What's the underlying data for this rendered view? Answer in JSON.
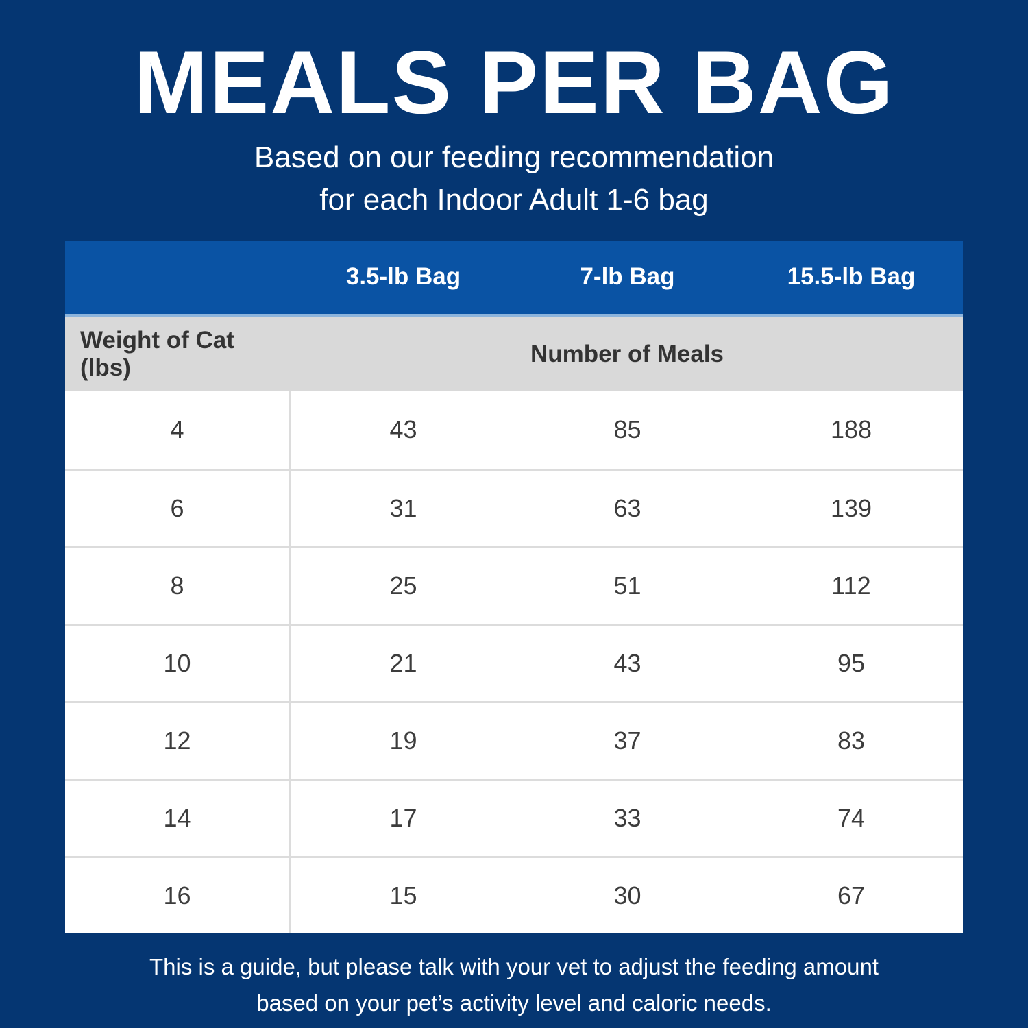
{
  "title": "MEALS PER BAG",
  "subtitle": {
    "line1": "Based on our feeding recommendation",
    "line2": "for each Indoor Adult 1-6 bag"
  },
  "chart_data": {
    "type": "table",
    "title": "MEALS PER BAG",
    "subtitle": "Based on our feeding recommendation for each Indoor Adult 1-6 bag",
    "columns": [
      "Weight of Cat (lbs)",
      "3.5-lb Bag",
      "7-lb Bag",
      "15.5-lb Bag"
    ],
    "group_header": "Number of Meals",
    "rows": [
      [
        4,
        43,
        85,
        188
      ],
      [
        6,
        31,
        63,
        139
      ],
      [
        8,
        25,
        51,
        112
      ],
      [
        10,
        21,
        43,
        95
      ],
      [
        12,
        19,
        37,
        83
      ],
      [
        14,
        17,
        33,
        74
      ],
      [
        16,
        15,
        30,
        67
      ]
    ]
  },
  "table": {
    "bag_headers": [
      "3.5-lb Bag",
      "7-lb Bag",
      "15.5-lb Bag"
    ],
    "weight_header": "Weight of Cat (lbs)",
    "meals_header": "Number of Meals",
    "rows": [
      {
        "weight": "4",
        "meals": [
          "43",
          "85",
          "188"
        ]
      },
      {
        "weight": "6",
        "meals": [
          "31",
          "63",
          "139"
        ]
      },
      {
        "weight": "8",
        "meals": [
          "25",
          "51",
          "112"
        ]
      },
      {
        "weight": "10",
        "meals": [
          "21",
          "43",
          "95"
        ]
      },
      {
        "weight": "12",
        "meals": [
          "19",
          "37",
          "83"
        ]
      },
      {
        "weight": "14",
        "meals": [
          "17",
          "33",
          "74"
        ]
      },
      {
        "weight": "16",
        "meals": [
          "15",
          "30",
          "67"
        ]
      }
    ]
  },
  "footer": {
    "line1": "This is a guide, but please talk with your vet to adjust the feeding amount",
    "line2": "based on your pet’s activity level and caloric needs."
  },
  "colors": {
    "background_navy": "#053672",
    "header_blue": "#0a53a4",
    "header_separator_light_blue": "#8db4dc",
    "subheader_gray": "#d9d9d9",
    "divider_gray": "#dcdcdc",
    "body_text": "#3c3c3c",
    "text_white": "#ffffff"
  }
}
